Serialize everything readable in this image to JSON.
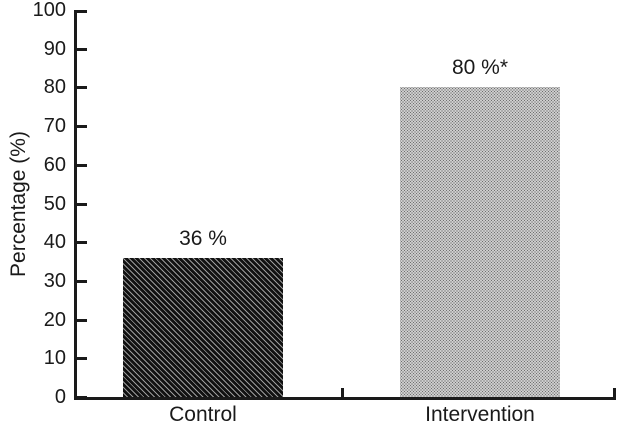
{
  "chart_data": {
    "type": "bar",
    "title": "",
    "xlabel": "",
    "ylabel": "Percentage (%)",
    "categories": [
      "Control",
      "Intervention"
    ],
    "values": [
      36,
      80
    ],
    "value_labels": [
      "36 %",
      "80 %*"
    ],
    "ylim": [
      0,
      100
    ],
    "yticks": [
      0,
      10,
      20,
      30,
      40,
      50,
      60,
      70,
      80,
      90,
      100
    ],
    "ytick_labels": [
      "0",
      "10",
      "20",
      "30",
      "40",
      "50",
      "60",
      "70",
      "80",
      "90",
      "100"
    ],
    "grid": false,
    "legend": false,
    "bar_patterns": [
      "dark-diagonal-hatch",
      "light-dot-stipple"
    ],
    "annotation_marker": "*",
    "colors": {
      "axis": "#1a1a1a",
      "text": "#1a1a1a",
      "hatch_dark": "#111111",
      "hatch_light": "#9a9a9a",
      "stipple_dot": "#6e6e6e",
      "stipple_bg": "#f2f2f2",
      "background": "#ffffff"
    }
  }
}
